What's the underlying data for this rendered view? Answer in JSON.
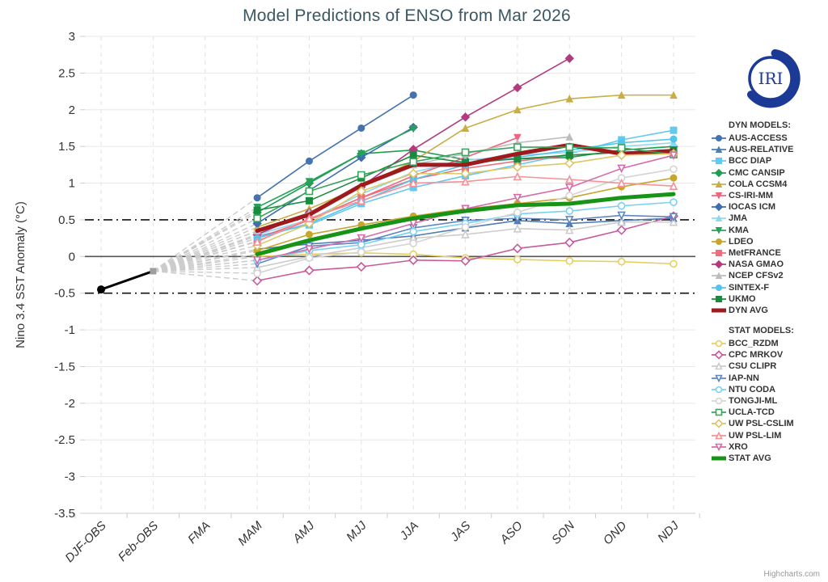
{
  "logo": {
    "text": "IRI",
    "color": "#1b3a96"
  },
  "chart_data": {
    "type": "line",
    "title": "Model Predictions of ENSO from Mar 2026",
    "ylabel": "Nino 3.4 SST Anomaly (°C)",
    "xlabel": "",
    "categories": [
      "DJF-OBS",
      "Feb-OBS",
      "FMA",
      "MAM",
      "AMJ",
      "MJJ",
      "JJA",
      "JAS",
      "ASO",
      "SON",
      "OND",
      "NDJ"
    ],
    "ylim": [
      -3.5,
      3
    ],
    "ytick_step": 0.5,
    "grid": true,
    "legend_position": "right",
    "zero_line_value": 0,
    "threshold_line_values": [
      0.5,
      -0.5
    ],
    "forecast_start_index": 3,
    "observations": {
      "name": "OBS",
      "color": "#000000",
      "points": [
        {
          "category": "DJF-OBS",
          "value": -0.45
        },
        {
          "category": "Feb-OBS",
          "value": -0.2
        }
      ]
    },
    "fan": {
      "color": "#cccccc",
      "style": "dashed",
      "from_category": "Feb-OBS",
      "from_value": -0.2
    },
    "groups": [
      {
        "title": "DYN MODELS:",
        "series": [
          {
            "name": "AUS-ACCESS",
            "color": "#4673ae",
            "marker": "circle",
            "open": false,
            "thick": false,
            "values": [
              0.8,
              1.3,
              1.75,
              2.2,
              null,
              null,
              null,
              null,
              null
            ]
          },
          {
            "name": "AUS-RELATIVE",
            "color": "#4f7db3",
            "marker": "triangle",
            "open": false,
            "thick": false,
            "values": [
              0.1,
              0.17,
              0.22,
              0.28,
              0.39,
              0.49,
              0.45,
              0.49,
              0.52
            ]
          },
          {
            "name": "BCC DIAP",
            "color": "#63c9ef",
            "marker": "square",
            "open": false,
            "thick": false,
            "values": [
              0.28,
              0.43,
              0.72,
              0.94,
              1.1,
              1.25,
              1.4,
              1.59,
              1.72
            ]
          },
          {
            "name": "CMC CANSIP",
            "color": "#1e9e50",
            "marker": "diamond",
            "open": false,
            "thick": false,
            "values": [
              0.6,
              1.0,
              1.4,
              1.45,
              1.32,
              1.33,
              1.35,
              1.45,
              1.5
            ]
          },
          {
            "name": "COLA CCSM4",
            "color": "#c9ae45",
            "marker": "triangle",
            "open": false,
            "thick": false,
            "values": [
              0.4,
              0.65,
              0.95,
              1.3,
              1.75,
              2.0,
              2.15,
              2.2,
              2.2
            ]
          },
          {
            "name": "CS-IRI-MM",
            "color": "#f0647e",
            "marker": "triangle-down",
            "open": false,
            "thick": false,
            "values": [
              0.25,
              0.5,
              0.8,
              1.1,
              1.35,
              1.62,
              null,
              null,
              null
            ]
          },
          {
            "name": "IOCAS ICM",
            "color": "#3f6cb4",
            "marker": "diamond",
            "open": false,
            "thick": false,
            "values": [
              0.45,
              0.9,
              1.35,
              1.76,
              null,
              null,
              null,
              null,
              null
            ]
          },
          {
            "name": "JMA",
            "color": "#8ed9f2",
            "marker": "triangle",
            "open": false,
            "thick": false,
            "values": [
              0.3,
              0.5,
              0.85,
              1.15,
              1.31,
              1.38,
              1.42,
              1.5,
              1.55
            ]
          },
          {
            "name": "KMA",
            "color": "#27a25b",
            "marker": "triangle-down",
            "open": false,
            "thick": false,
            "values": [
              0.67,
              1.02,
              1.4,
              1.74,
              null,
              null,
              null,
              null,
              null
            ]
          },
          {
            "name": "LDEO",
            "color": "#c7a62e",
            "marker": "circle",
            "open": false,
            "thick": false,
            "values": [
              0.08,
              0.3,
              0.43,
              0.55,
              0.65,
              0.72,
              0.8,
              0.95,
              1.07
            ]
          },
          {
            "name": "MetFRANCE",
            "color": "#ee6e7e",
            "marker": "square",
            "open": false,
            "thick": false,
            "values": [
              0.21,
              0.5,
              0.8,
              1.05,
              1.2,
              1.3,
              1.38,
              1.42,
              1.45
            ]
          },
          {
            "name": "NASA GMAO",
            "color": "#b23a7e",
            "marker": "diamond",
            "open": false,
            "thick": false,
            "values": [
              0.3,
              0.6,
              0.95,
              1.46,
              1.9,
              2.3,
              2.7,
              null,
              null
            ]
          },
          {
            "name": "NCEP CFSv2",
            "color": "#bdbdbd",
            "marker": "triangle",
            "open": false,
            "thick": false,
            "values": [
              0.35,
              0.6,
              0.95,
              1.25,
              1.4,
              1.55,
              1.63,
              null,
              null
            ]
          },
          {
            "name": "SINTEX-F",
            "color": "#54c4ec",
            "marker": "circle",
            "open": false,
            "thick": false,
            "values": [
              0.25,
              0.45,
              0.75,
              1.05,
              1.25,
              1.35,
              1.45,
              1.55,
              1.6
            ]
          },
          {
            "name": "UKMO",
            "color": "#1a8b3e",
            "marker": "square",
            "open": false,
            "thick": false,
            "values": [
              0.63,
              0.76,
              1.07,
              1.38,
              1.28,
              1.33,
              1.38,
              1.42,
              1.45
            ]
          },
          {
            "name": "DYN AVG",
            "color": "#9e1a1d",
            "marker": "none",
            "open": false,
            "thick": true,
            "values": [
              0.35,
              0.57,
              0.97,
              1.25,
              1.25,
              1.4,
              1.52,
              1.4,
              1.44
            ]
          }
        ]
      },
      {
        "title": "STAT MODELS:",
        "series": [
          {
            "name": "BCC_RZDM",
            "color": "#e6cf5e",
            "marker": "circle",
            "open": true,
            "thick": false,
            "values": [
              0.0,
              0.03,
              0.05,
              0.03,
              -0.02,
              -0.04,
              -0.06,
              -0.07,
              -0.1
            ]
          },
          {
            "name": "CPC MRKOV",
            "color": "#c75a9b",
            "marker": "diamond",
            "open": true,
            "thick": false,
            "values": [
              -0.33,
              -0.19,
              -0.14,
              -0.05,
              -0.06,
              0.11,
              0.19,
              0.36,
              0.55
            ]
          },
          {
            "name": "CSU CLIPR",
            "color": "#cccccc",
            "marker": "triangle",
            "open": true,
            "thick": false,
            "values": [
              -0.15,
              0.0,
              0.12,
              0.25,
              0.3,
              0.38,
              0.36,
              0.47,
              0.47
            ]
          },
          {
            "name": "IAP-NN",
            "color": "#6186c2",
            "marker": "triangle-down",
            "open": true,
            "thick": false,
            "values": [
              -0.1,
              0.14,
              0.19,
              0.39,
              0.49,
              0.52,
              0.5,
              0.56,
              0.54
            ]
          },
          {
            "name": "NTU CODA",
            "color": "#79d2f2",
            "marker": "circle",
            "open": true,
            "thick": false,
            "values": [
              -0.05,
              0.08,
              0.16,
              0.34,
              0.45,
              0.58,
              0.62,
              0.69,
              0.74
            ]
          },
          {
            "name": "TONGJI-ML",
            "color": "#d4d4d4",
            "marker": "circle",
            "open": true,
            "thick": false,
            "values": [
              -0.23,
              -0.02,
              0.06,
              0.18,
              0.4,
              0.6,
              0.83,
              1.07,
              1.19
            ]
          },
          {
            "name": "UCLA-TCD",
            "color": "#3aa45c",
            "marker": "square",
            "open": true,
            "thick": false,
            "values": [
              0.52,
              0.89,
              1.11,
              1.29,
              1.42,
              1.49,
              1.49,
              1.48,
              1.39
            ]
          },
          {
            "name": "UW PSL-CSLIM",
            "color": "#dcc763",
            "marker": "diamond",
            "open": true,
            "thick": false,
            "values": [
              0.15,
              0.45,
              0.89,
              1.13,
              1.13,
              1.22,
              1.27,
              1.38,
              1.4
            ]
          },
          {
            "name": "UW PSL-LIM",
            "color": "#f49297",
            "marker": "triangle",
            "open": true,
            "thick": false,
            "values": [
              0.2,
              0.52,
              0.76,
              1.0,
              1.02,
              1.09,
              1.05,
              1.0,
              0.96
            ]
          },
          {
            "name": "XRO",
            "color": "#d76aa8",
            "marker": "triangle-down",
            "open": true,
            "thick": false,
            "values": [
              -0.05,
              0.1,
              0.25,
              0.45,
              0.65,
              0.8,
              0.94,
              1.2,
              1.38
            ]
          },
          {
            "name": "STAT AVG",
            "color": "#179417",
            "marker": "none",
            "open": false,
            "thick": true,
            "values": [
              0.03,
              0.22,
              0.38,
              0.52,
              0.62,
              0.7,
              0.72,
              0.8,
              0.85
            ]
          }
        ]
      }
    ],
    "credits": "Highcharts.com"
  }
}
